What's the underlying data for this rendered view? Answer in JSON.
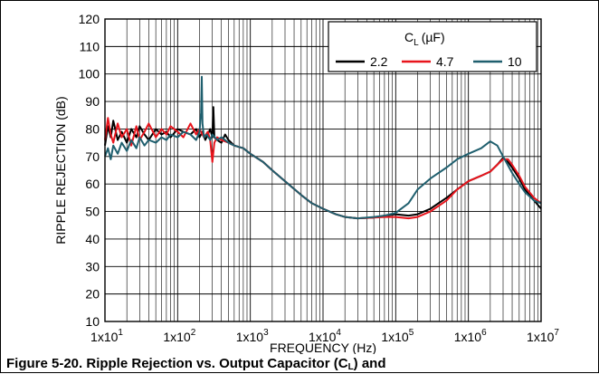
{
  "chart_data": {
    "type": "line",
    "xlabel": "FREQUENCY (Hz)",
    "ylabel": "RIPPLE REJECTION (dB)",
    "x_scale": "log",
    "xlim": [
      10,
      10000000
    ],
    "ylim": [
      10,
      120
    ],
    "y_ticks": [
      10,
      20,
      30,
      40,
      50,
      60,
      70,
      80,
      90,
      100,
      110,
      120
    ],
    "x_ticks": [
      {
        "value": 10,
        "base": "1x10",
        "exp": "1"
      },
      {
        "value": 100,
        "base": "1x10",
        "exp": "2"
      },
      {
        "value": 1000,
        "base": "1x10",
        "exp": "3"
      },
      {
        "value": 10000,
        "base": "1x10",
        "exp": "4"
      },
      {
        "value": 100000,
        "base": "1x10",
        "exp": "5"
      },
      {
        "value": 1000000,
        "base": "1x10",
        "exp": "6"
      },
      {
        "value": 10000000,
        "base": "1x10",
        "exp": "7"
      }
    ],
    "grid": true,
    "legend": {
      "placement": "top-right",
      "title_main": "C",
      "title_sub": "L",
      "title_unit": "(µF)",
      "entries": [
        "2.2",
        "4.7",
        "10"
      ]
    },
    "series": [
      {
        "name": "2.2",
        "color": "#000000",
        "x": [
          10,
          11,
          12,
          13,
          15,
          17,
          20,
          23,
          27,
          30,
          35,
          40,
          50,
          60,
          70,
          80,
          100,
          120,
          150,
          180,
          200,
          220,
          240,
          260,
          280,
          300,
          310,
          320,
          350,
          400,
          450,
          500,
          600,
          800,
          1000,
          1500,
          2000,
          3000,
          5000,
          7000,
          10000,
          15000,
          20000,
          30000,
          50000,
          70000,
          100000,
          150000,
          200000,
          300000,
          500000,
          700000,
          1000000,
          1500000,
          2000000,
          2500000,
          3000000,
          3500000,
          4000000,
          5000000,
          6000000,
          8000000,
          10000000
        ],
        "values": [
          74,
          81,
          77,
          83,
          76,
          79,
          75,
          80,
          77,
          81,
          78,
          76,
          80,
          78,
          79,
          77,
          80,
          79,
          78,
          80,
          77,
          79,
          76,
          78,
          80,
          77,
          88,
          77,
          76,
          75,
          78,
          76,
          74,
          73,
          71,
          68,
          65,
          61,
          56,
          53,
          51,
          49,
          48,
          47.5,
          47.8,
          48.5,
          49,
          48.5,
          49,
          51,
          55,
          58,
          61,
          63,
          64.5,
          67,
          69.5,
          68,
          66,
          62,
          58,
          54,
          51
        ]
      },
      {
        "name": "4.7",
        "color": "#e8141c",
        "x": [
          10,
          11,
          12,
          13,
          15,
          17,
          20,
          23,
          27,
          30,
          35,
          40,
          50,
          60,
          70,
          80,
          100,
          120,
          150,
          180,
          200,
          230,
          260,
          280,
          300,
          320,
          350,
          400,
          500,
          600,
          800,
          1000,
          1500,
          2000,
          3000,
          5000,
          7000,
          10000,
          15000,
          20000,
          30000,
          50000,
          70000,
          100000,
          150000,
          200000,
          300000,
          500000,
          700000,
          1000000,
          1500000,
          2000000,
          2500000,
          3000000,
          3500000,
          4000000,
          5000000,
          6000000,
          8000000,
          10000000
        ],
        "values": [
          76,
          84,
          78,
          75,
          82,
          77,
          80,
          74,
          81,
          76,
          79,
          82,
          77,
          80,
          78,
          81,
          79,
          77,
          82,
          78,
          80,
          77,
          79,
          76,
          68,
          75,
          77,
          76,
          75,
          74,
          73,
          71,
          68,
          65,
          61,
          56,
          53,
          51,
          49,
          48,
          47.5,
          47.8,
          48,
          48,
          47.5,
          48,
          50,
          54,
          58,
          61,
          63,
          64.5,
          67,
          69,
          69,
          67,
          63,
          59,
          55,
          53
        ]
      },
      {
        "name": "10",
        "color": "#1f5f6e",
        "x": [
          10,
          11,
          12,
          13,
          15,
          17,
          20,
          23,
          27,
          30,
          35,
          40,
          50,
          60,
          70,
          80,
          100,
          120,
          150,
          180,
          200,
          210,
          215,
          220,
          230,
          250,
          280,
          300,
          350,
          400,
          500,
          600,
          800,
          1000,
          1500,
          2000,
          3000,
          5000,
          7000,
          10000,
          15000,
          20000,
          30000,
          50000,
          70000,
          100000,
          150000,
          200000,
          300000,
          500000,
          700000,
          1000000,
          1500000,
          2000000,
          2500000,
          3000000,
          4000000,
          5000000,
          6000000,
          8000000,
          10000000
        ],
        "values": [
          70,
          73,
          69,
          74,
          71,
          75,
          72,
          76,
          73,
          77,
          74,
          76,
          75,
          77,
          76,
          78,
          77,
          79,
          78,
          76,
          79,
          86,
          99,
          82,
          77,
          78,
          76,
          78,
          76,
          77,
          75,
          74,
          73,
          71,
          68,
          65,
          61,
          56,
          53,
          51,
          49,
          48,
          47.5,
          48,
          48.5,
          49.5,
          53,
          58,
          62,
          66,
          69,
          71,
          73,
          75.5,
          74,
          70,
          64,
          60,
          57,
          54,
          53
        ]
      }
    ]
  },
  "caption": {
    "text": "Figure 5-20. Ripple Rejection vs. Output Capacitor (C",
    "sub": "L",
    "tail": ") and"
  }
}
